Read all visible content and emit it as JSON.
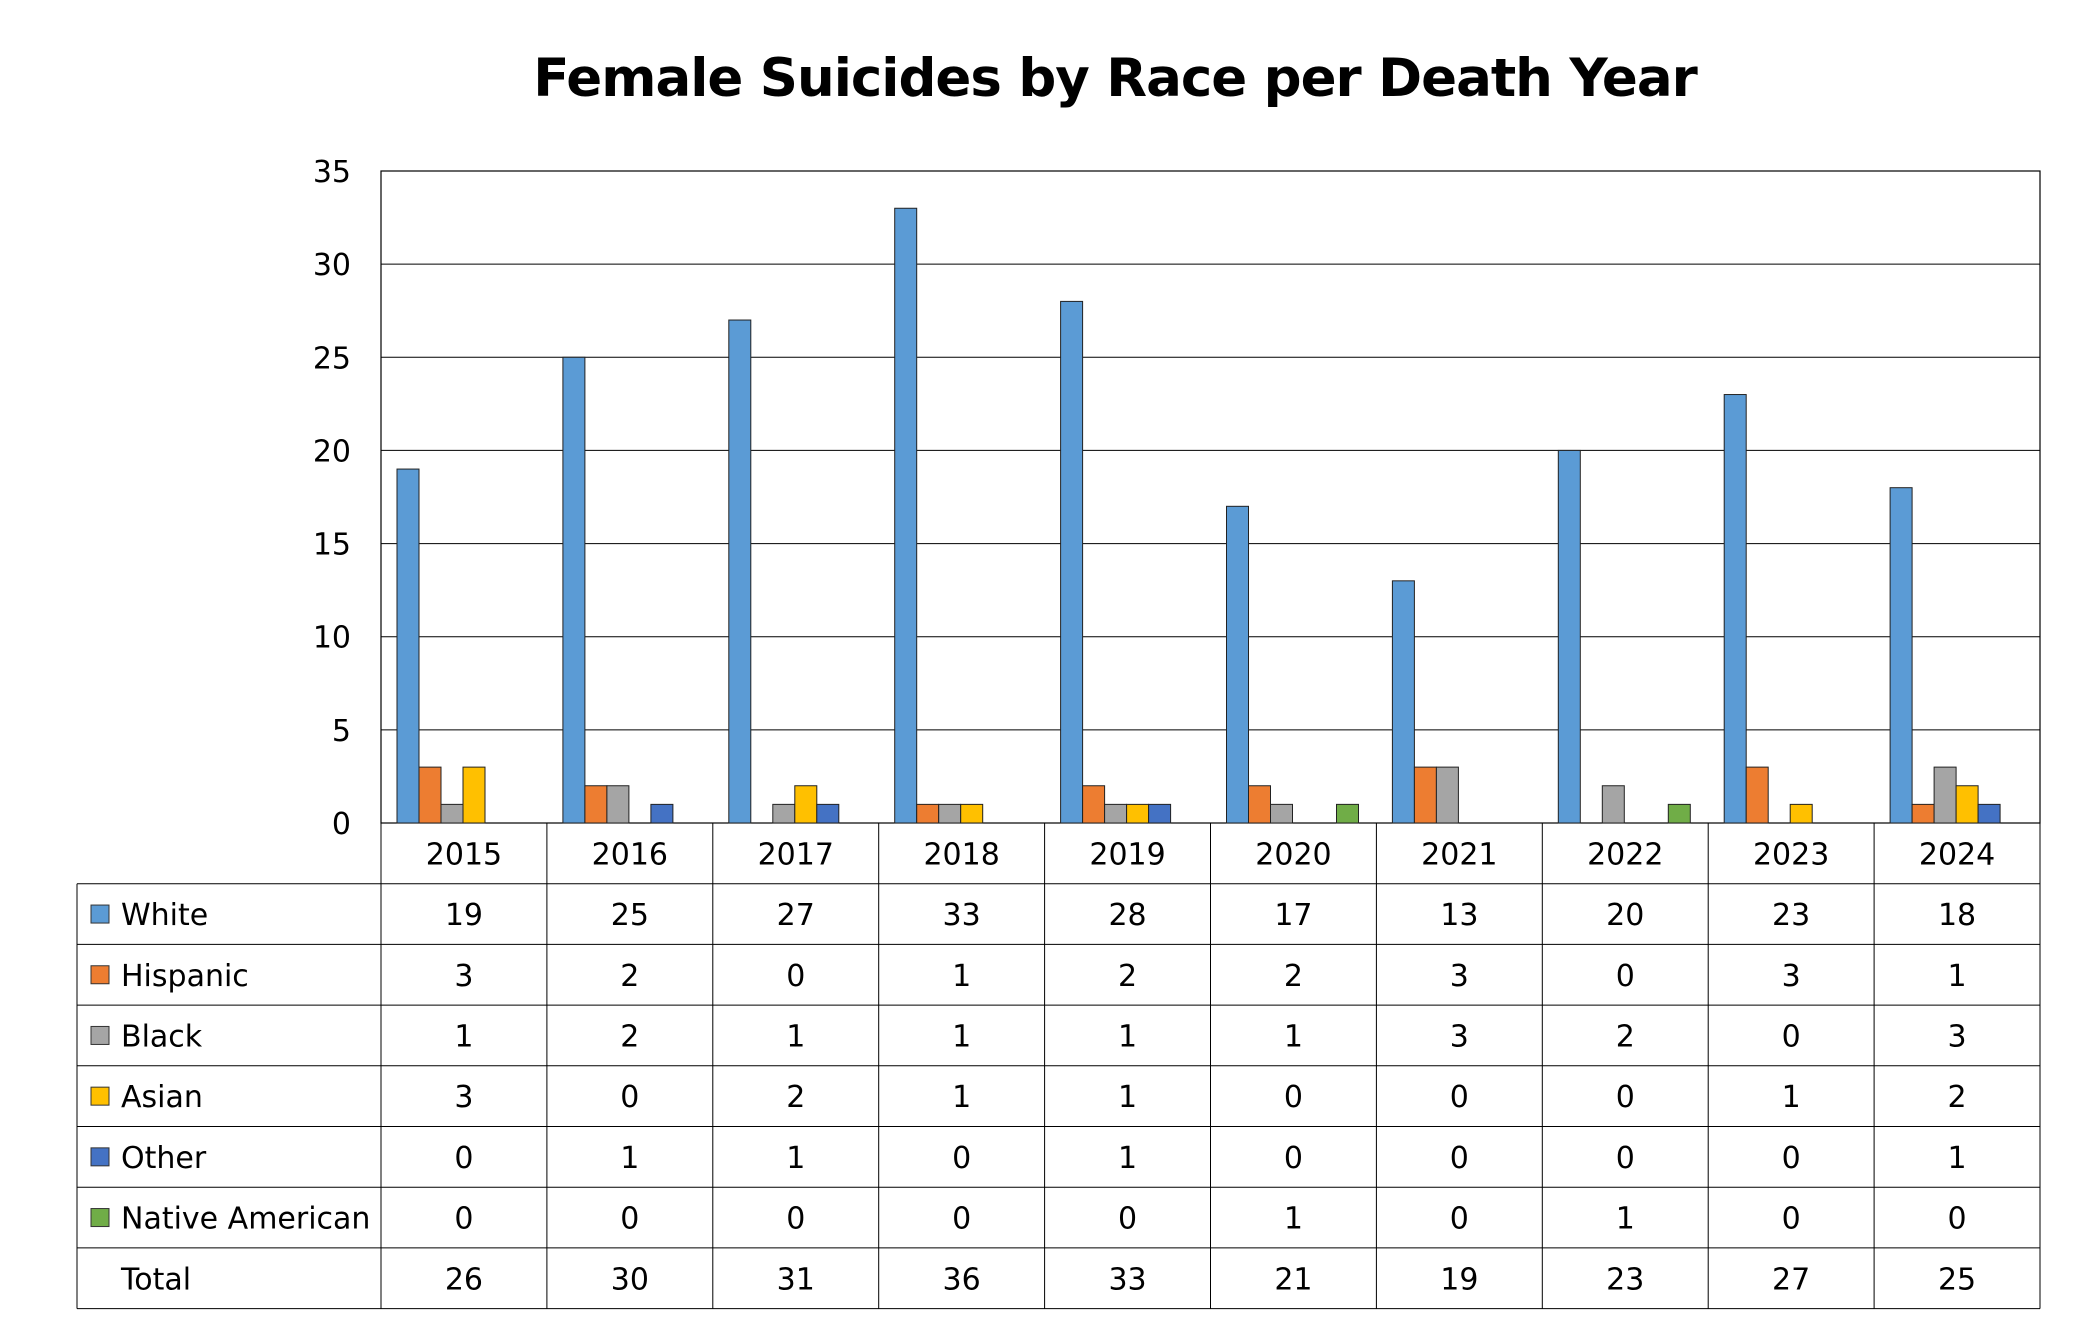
{
  "chart_data": {
    "type": "bar",
    "title": "Female Suicides by Race per Death Year",
    "xlabel": "",
    "ylabel": "",
    "ylim": [
      0,
      35
    ],
    "yticks": [
      0,
      5,
      10,
      15,
      20,
      25,
      30,
      35
    ],
    "grid": true,
    "legend": "data-table-left",
    "categories": [
      "2015",
      "2016",
      "2017",
      "2018",
      "2019",
      "2020",
      "2021",
      "2022",
      "2023",
      "2024"
    ],
    "series": [
      {
        "name": "White",
        "color": "#5B9BD5",
        "values": [
          19,
          25,
          27,
          33,
          28,
          17,
          13,
          20,
          23,
          18
        ]
      },
      {
        "name": "Hispanic",
        "color": "#ED7D31",
        "values": [
          3,
          2,
          0,
          1,
          2,
          2,
          3,
          0,
          3,
          1
        ]
      },
      {
        "name": "Black",
        "color": "#A5A5A5",
        "values": [
          1,
          2,
          1,
          1,
          1,
          1,
          3,
          2,
          0,
          3
        ]
      },
      {
        "name": "Asian",
        "color": "#FFC000",
        "values": [
          3,
          0,
          2,
          1,
          1,
          0,
          0,
          0,
          1,
          2
        ]
      },
      {
        "name": "Other",
        "color": "#4472C4",
        "values": [
          0,
          1,
          1,
          0,
          1,
          0,
          0,
          0,
          0,
          1
        ]
      },
      {
        "name": "Native American",
        "color": "#70AD47",
        "values": [
          0,
          0,
          0,
          0,
          0,
          1,
          0,
          1,
          0,
          0
        ]
      }
    ],
    "total_row": {
      "name": "Total",
      "values": [
        26,
        30,
        31,
        36,
        33,
        21,
        19,
        23,
        27,
        25
      ]
    }
  }
}
